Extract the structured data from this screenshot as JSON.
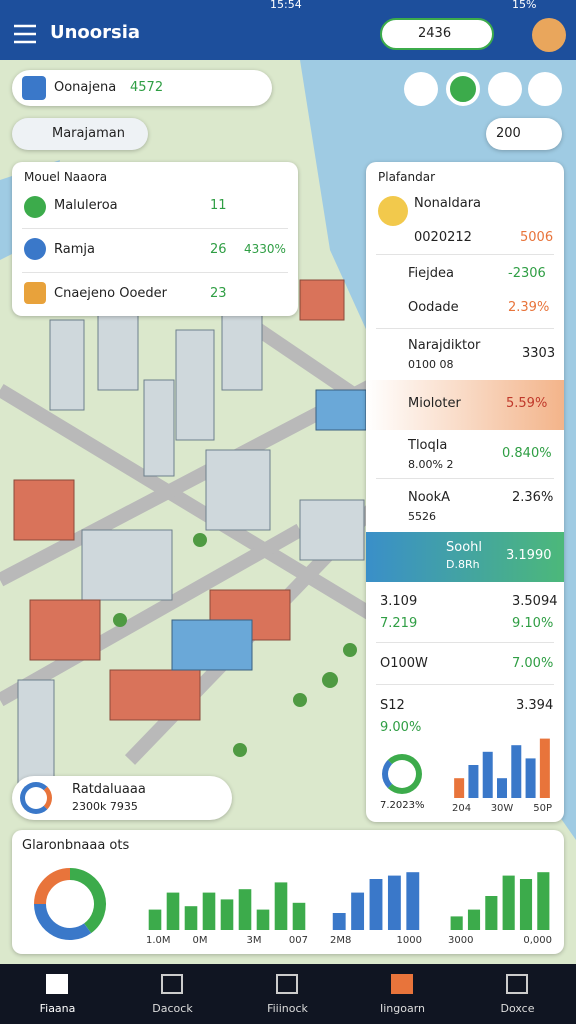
{
  "status_bar": {
    "time": "15:54",
    "battery": "15%"
  },
  "header": {
    "title": "Unoorsia",
    "search_value": "2436"
  },
  "search_card": {
    "title": "Oonajena",
    "value": "4572"
  },
  "filter_chip": "Marajaman",
  "scale_chip": "200",
  "left_panel": {
    "title": "Mouel Naaora",
    "items": [
      {
        "label": "Maluleroa",
        "value": "11"
      },
      {
        "label": "Ramja",
        "value": "26",
        "change": "4330%"
      },
      {
        "label": "Cnaejeno Ooeder",
        "value": "23"
      }
    ]
  },
  "right_panel": {
    "title": "Plafandar",
    "feature": {
      "name": "Nonaldara",
      "code": "0020212",
      "value": "5006"
    },
    "rows": [
      {
        "label": "Fiejdea",
        "value": "-2306"
      },
      {
        "label": "Oodade",
        "value": "2.39%"
      },
      {
        "label": "Narajdiktor",
        "sub": "0100 08",
        "value": "3303"
      },
      {
        "label": "Mioloter",
        "value": "5.59%"
      },
      {
        "label": "Tloqla",
        "sub": "8.00% 2",
        "value": "0.840%"
      },
      {
        "label": "NookA",
        "sub": "5526",
        "value": "2.36%"
      },
      {
        "label": "Soohl",
        "sub": "D.8Rh",
        "value": "3.1990"
      }
    ],
    "stats": [
      {
        "left": "3.109",
        "right": "3.5094",
        "left_sub": "7.219",
        "right_sub": "9.10%"
      },
      {
        "left": "O100W",
        "right": "7.00%"
      },
      {
        "left": "S12",
        "right": "3.394",
        "left_sub": "9.00%"
      }
    ],
    "mini_chart": {
      "caption": "7.2023%",
      "values": [
        3,
        5,
        7,
        3,
        8,
        6,
        9
      ],
      "colors": [
        "#e8743b",
        "#3a78c9",
        "#3a78c9",
        "#3a78c9",
        "#3a78c9",
        "#3a78c9",
        "#e8743b"
      ],
      "ylim": [
        0,
        10
      ],
      "labels": [
        "204",
        "30W",
        "50P"
      ]
    }
  },
  "location_card": {
    "title": "Ratdaluaaa",
    "subtitle": "2300k 7935"
  },
  "bottom_card": {
    "title": "Glaronbnaaa ots",
    "donut": {
      "values": [
        40,
        35,
        25
      ],
      "colors": [
        "#3cab4b",
        "#3a78c9",
        "#e8743b"
      ]
    },
    "charts": [
      {
        "values": [
          12,
          22,
          14,
          22,
          18,
          24,
          12,
          28,
          16
        ],
        "color": "#3cab4b",
        "ylim": [
          0,
          40
        ],
        "labels": [
          "1.0M",
          "0M",
          "3M",
          "007"
        ]
      },
      {
        "values": [
          10,
          22,
          30,
          32,
          34
        ],
        "color": "#3a78c9",
        "ylim": [
          0,
          40
        ],
        "labels": [
          "2M8",
          "1000"
        ]
      },
      {
        "values": [
          8,
          12,
          20,
          32,
          30,
          34
        ],
        "color": "#3cab4b",
        "ylim": [
          0,
          40
        ],
        "labels": [
          "3000",
          "0,000"
        ]
      }
    ]
  },
  "nav": [
    "Fiaana",
    "Dacock",
    "Fiiinock",
    "Iingoarn",
    "Doxce"
  ]
}
